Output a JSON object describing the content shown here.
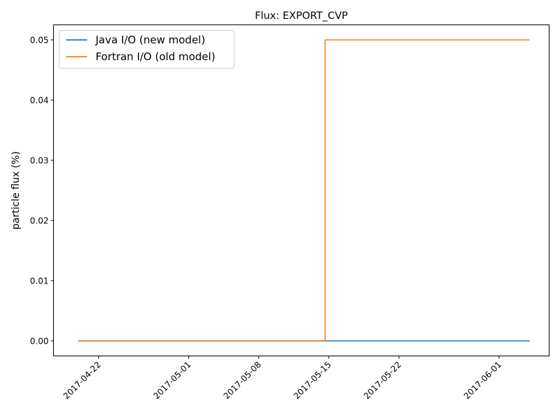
{
  "chart_data": {
    "type": "line",
    "title": "Flux: EXPORT_CVP",
    "xlabel": "",
    "ylabel": "particle flux (%)",
    "x_axis_type": "date",
    "xlim": [
      "2017-04-17T12:00",
      "2017-06-06T00:00"
    ],
    "ylim": [
      -0.0025,
      0.0525
    ],
    "x_ticks": [
      "2017-04-22",
      "2017-05-01",
      "2017-05-08",
      "2017-05-15",
      "2017-05-22",
      "2017-06-01"
    ],
    "y_ticks": [
      0.0,
      0.01,
      0.02,
      0.03,
      0.04,
      0.05
    ],
    "y_tick_labels": [
      "0.00",
      "0.01",
      "0.02",
      "0.03",
      "0.04",
      "0.05"
    ],
    "grid": false,
    "legend_position": "top-left",
    "series": [
      {
        "name": "Java I/O (new model)",
        "color": "#1f77b4",
        "points": [
          {
            "x": "2017-04-20T00:00",
            "y": 0.0
          },
          {
            "x": "2017-06-04T00:00",
            "y": 0.0
          }
        ]
      },
      {
        "name": "Fortran I/O (old model)",
        "color": "#ff7f0e",
        "points": [
          {
            "x": "2017-04-20T00:00",
            "y": 0.0
          },
          {
            "x": "2017-05-14T15:00",
            "y": 0.0
          },
          {
            "x": "2017-05-14T15:00",
            "y": 0.05
          },
          {
            "x": "2017-06-04T00:00",
            "y": 0.05
          }
        ]
      }
    ]
  }
}
